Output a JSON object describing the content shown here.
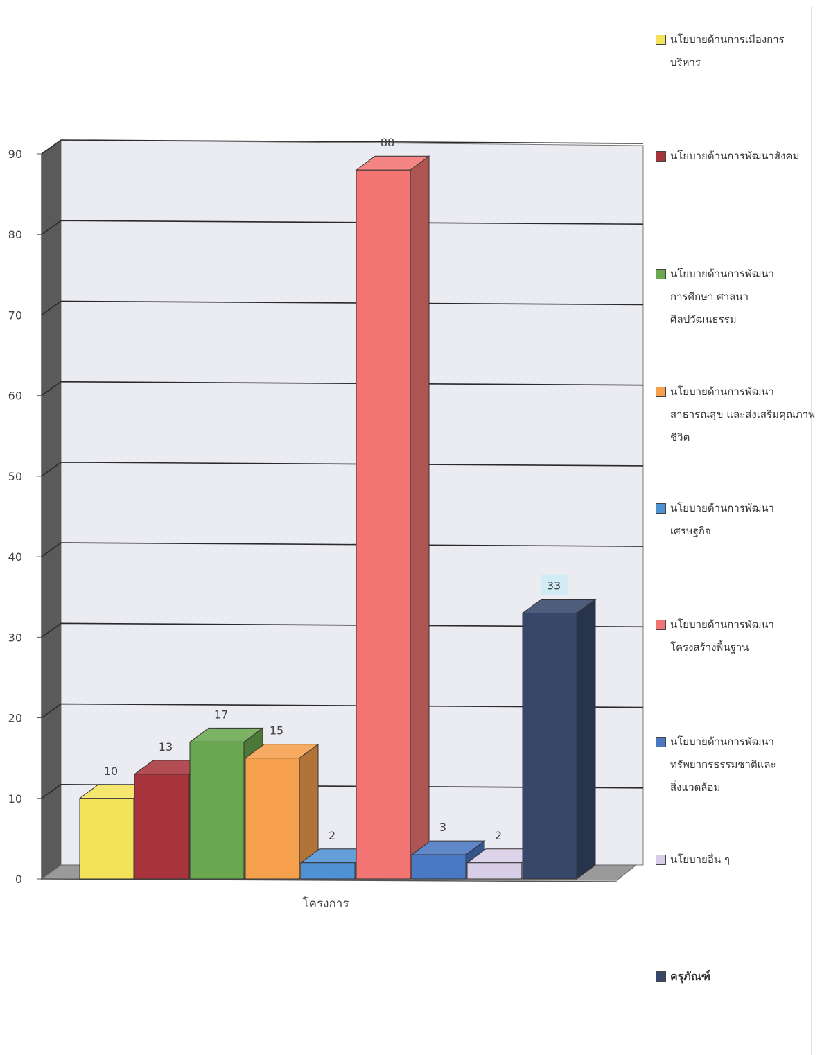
{
  "chart_data": {
    "type": "bar",
    "style": "3d-clustered-column",
    "xlabel": "โครงการ",
    "ylabel": "",
    "ylim": [
      0,
      90
    ],
    "y_ticks": [
      0,
      10,
      20,
      30,
      40,
      50,
      60,
      70,
      80,
      90
    ],
    "grid": true,
    "legend_position": "right",
    "series": [
      {
        "name": "นโยบายด้านการเมืองการบริหาร",
        "value": 10,
        "color": "#f2e35a"
      },
      {
        "name": "นโยบายด้านการพัฒนาสังคม",
        "value": 13,
        "color": "#a8353d"
      },
      {
        "name": "นโยบายด้านการพัฒนาการศึกษา ศาสนา ศิลปวัฒนธรรม",
        "value": 17,
        "color": "#6aa84f"
      },
      {
        "name": "นโยบายด้านการพัฒนาสาธารณสุข และส่งเสริมคุณภาพชีวิต",
        "value": 15,
        "color": "#f6a04d"
      },
      {
        "name": "นโยบายด้านการพัฒนาเศรษฐกิจ",
        "value": 2,
        "color": "#4f92d4"
      },
      {
        "name": "นโยบายด้านการพัฒนาโครงสร้างพื้นฐาน",
        "value": 88,
        "color": "#f27473"
      },
      {
        "name": "นโยบายด้านการพัฒนาทรัพยากรธรรมชาติและสิ่งแวดล้อม",
        "value": 3,
        "color": "#4a78c2"
      },
      {
        "name": "นโยบายอื่น ๆ",
        "value": 2,
        "color": "#d7cde6"
      },
      {
        "name": "ครุภัณฑ์",
        "value": 33,
        "color": "#37476a"
      }
    ]
  },
  "legend": [
    {
      "label": "นโยบายด้านการเมืองการ\nบริหาร",
      "color": "#f2e35a"
    },
    {
      "label": "นโยบายด้านการพัฒนาสังคม",
      "color": "#a8353d"
    },
    {
      "label": "นโยบายด้านการพัฒนา\nการศึกษา ศาสนา\nศิลปวัฒนธรรม",
      "color": "#6aa84f"
    },
    {
      "label": "นโยบายด้านการพัฒนา\nสาธารณสุข และส่งเสริมคุณภาพ\nชีวิต",
      "color": "#f6a04d"
    },
    {
      "label": "นโยบายด้านการพัฒนา\nเศรษฐกิจ",
      "color": "#4f92d4"
    },
    {
      "label": "นโยบายด้านการพัฒนา\nโครงสร้างพื้นฐาน",
      "color": "#f27473"
    },
    {
      "label": "นโยบายด้านการพัฒนา\nทรัพยากรธรรมชาติและ\nสิ่งแวดล้อม",
      "color": "#4a78c2"
    },
    {
      "label": "นโยบายอื่น ๆ",
      "color": "#d7cde6"
    },
    {
      "label": "ครุภัณฑ์",
      "color": "#37476a"
    }
  ],
  "colors": {
    "wall": "#ebebf2",
    "side_wall": "#5a5a5a",
    "floor": "#9a9a9a",
    "gridline": "#2a2a2a",
    "text": "#444444",
    "highlight_label_bg": "#d2ecf6"
  }
}
